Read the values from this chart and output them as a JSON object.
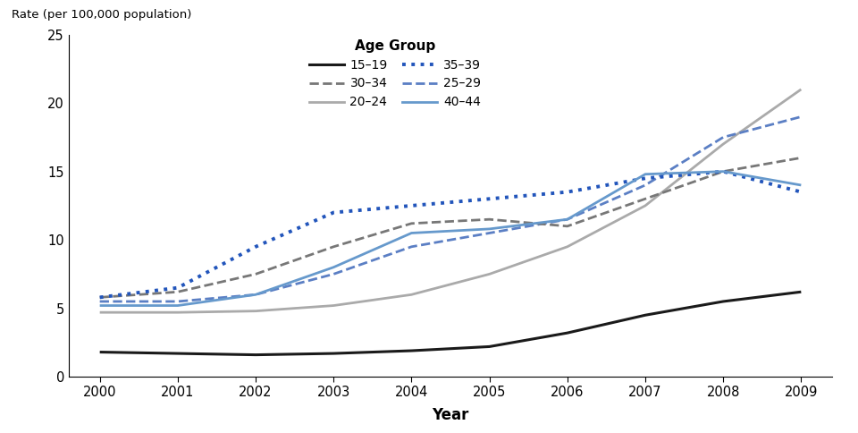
{
  "years": [
    2000,
    2001,
    2002,
    2003,
    2004,
    2005,
    2006,
    2007,
    2008,
    2009
  ],
  "series": {
    "15-19": {
      "values": [
        1.8,
        1.7,
        1.6,
        1.7,
        1.9,
        2.2,
        3.2,
        4.5,
        5.5,
        6.2
      ],
      "color": "#1a1a1a",
      "linestyle": "solid",
      "linewidth": 2.2,
      "label": "15–19"
    },
    "20-24": {
      "values": [
        4.7,
        4.7,
        4.8,
        5.2,
        6.0,
        7.5,
        9.5,
        12.5,
        17.0,
        21.0
      ],
      "color": "#aaaaaa",
      "linestyle": "solid",
      "linewidth": 2.0,
      "label": "20–24"
    },
    "25-29": {
      "values": [
        5.5,
        5.5,
        6.0,
        7.5,
        9.5,
        10.5,
        11.5,
        14.0,
        17.5,
        19.0
      ],
      "color": "#5b7fc4",
      "linestyle": "dashed",
      "linewidth": 2.0,
      "label": "25–29"
    },
    "30-34": {
      "values": [
        5.8,
        6.2,
        7.5,
        9.5,
        11.2,
        11.5,
        11.0,
        13.0,
        15.0,
        16.0
      ],
      "color": "#777777",
      "linestyle": "dashed",
      "linewidth": 2.0,
      "label": "30–34"
    },
    "35-39": {
      "values": [
        5.8,
        6.5,
        9.5,
        12.0,
        12.5,
        13.0,
        13.5,
        14.5,
        15.0,
        13.5
      ],
      "color": "#2255bb",
      "linestyle": "dotted",
      "linewidth": 2.8,
      "label": "35–39"
    },
    "40-44": {
      "values": [
        5.2,
        5.2,
        6.0,
        8.0,
        10.5,
        10.8,
        11.5,
        14.8,
        15.0,
        14.0
      ],
      "color": "#6699cc",
      "linestyle": "solid",
      "linewidth": 2.0,
      "label": "40–44"
    }
  },
  "ylabel": "Rate (per 100,000 population)",
  "xlabel": "Year",
  "legend_title": "Age Group",
  "ylim": [
    0,
    25
  ],
  "yticks": [
    0,
    5,
    10,
    15,
    20,
    25
  ],
  "xticks": [
    2000,
    2001,
    2002,
    2003,
    2004,
    2005,
    2006,
    2007,
    2008,
    2009
  ],
  "background_color": "#ffffff",
  "legend_col1": [
    "15-19",
    "20-24",
    "25-29"
  ],
  "legend_col2": [
    "30-34",
    "35-39",
    "40-44"
  ]
}
